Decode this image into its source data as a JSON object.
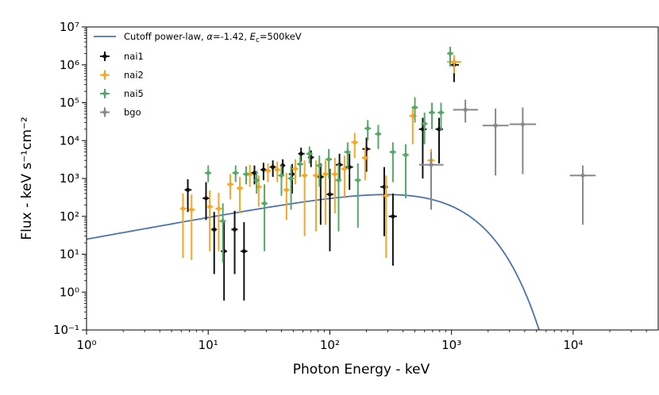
{
  "chart_data": {
    "type": "scatter",
    "title": "",
    "xlabel": "Photon Energy - keV",
    "ylabel": "Flux - keV s⁻¹cm⁻²",
    "xscale": "log",
    "yscale": "log",
    "xlim": [
      1,
      50000
    ],
    "ylim": [
      0.1,
      10000000
    ],
    "xticks": [
      {
        "value": 1,
        "label": "10⁰"
      },
      {
        "value": 10,
        "label": "10¹"
      },
      {
        "value": 100,
        "label": "10²"
      },
      {
        "value": 1000,
        "label": "10³"
      },
      {
        "value": 10000,
        "label": "10⁴"
      }
    ],
    "yticks": [
      {
        "value": 0.1,
        "label": "10⁻¹"
      },
      {
        "value": 1,
        "label": "10⁰"
      },
      {
        "value": 10,
        "label": "10¹"
      },
      {
        "value": 100,
        "label": "10²"
      },
      {
        "value": 1000,
        "label": "10³"
      },
      {
        "value": 10000,
        "label": "10⁴"
      },
      {
        "value": 100000,
        "label": "10⁵"
      },
      {
        "value": 1000000,
        "label": "10⁶"
      },
      {
        "value": 10000000,
        "label": "10⁷"
      }
    ],
    "legend_position": "top-left",
    "model": {
      "name": "Cutoff power-law",
      "label": "Cutoff power-law, α=-1.42, Ec=500keV",
      "alpha": -1.42,
      "ec_kev": 500,
      "norm_at_1kev": 25,
      "color": "#4c72b0"
    },
    "series": [
      {
        "name": "nai1",
        "color": "#111111",
        "points": [
          {
            "x": 6.8,
            "xlo": 6.4,
            "xhi": 7.3,
            "y": 500,
            "ylo": 130,
            "yhi": 950
          },
          {
            "x": 9.6,
            "xlo": 9.0,
            "xhi": 10.2,
            "y": 300,
            "ylo": 80,
            "yhi": 800
          },
          {
            "x": 11.2,
            "xlo": 10.6,
            "xhi": 11.8,
            "y": 45,
            "ylo": 3,
            "yhi": 130
          },
          {
            "x": 13.5,
            "xlo": 12.7,
            "xhi": 14.3,
            "y": 12,
            "ylo": 0.6,
            "yhi": 70
          },
          {
            "x": 16.5,
            "xlo": 15.5,
            "xhi": 17.5,
            "y": 45,
            "ylo": 3,
            "yhi": 140
          },
          {
            "x": 19.7,
            "xlo": 18.5,
            "xhi": 21.0,
            "y": 12,
            "ylo": 0.6,
            "yhi": 70
          },
          {
            "x": 24,
            "xlo": 22.5,
            "xhi": 25.5,
            "y": 1400,
            "ylo": 700,
            "yhi": 2200
          },
          {
            "x": 28.5,
            "xlo": 27,
            "xhi": 30,
            "y": 1700,
            "ylo": 900,
            "yhi": 2600
          },
          {
            "x": 34,
            "xlo": 32,
            "xhi": 36,
            "y": 2000,
            "ylo": 1100,
            "yhi": 3000
          },
          {
            "x": 41,
            "xlo": 39,
            "xhi": 43,
            "y": 2200,
            "ylo": 1200,
            "yhi": 3200
          },
          {
            "x": 49,
            "xlo": 46,
            "xhi": 52,
            "y": 1300,
            "ylo": 400,
            "yhi": 2400
          },
          {
            "x": 58,
            "xlo": 55,
            "xhi": 62,
            "y": 4500,
            "ylo": 2800,
            "yhi": 6500
          },
          {
            "x": 70,
            "xlo": 66,
            "xhi": 74,
            "y": 3600,
            "ylo": 2000,
            "yhi": 5500
          },
          {
            "x": 84,
            "xlo": 79,
            "xhi": 89,
            "y": 1100,
            "ylo": 60,
            "yhi": 2500
          },
          {
            "x": 100,
            "xlo": 94,
            "xhi": 107,
            "y": 380,
            "ylo": 12,
            "yhi": 1800
          },
          {
            "x": 120,
            "xlo": 112,
            "xhi": 128,
            "y": 2300,
            "ylo": 900,
            "yhi": 4500
          },
          {
            "x": 145,
            "xlo": 135,
            "xhi": 155,
            "y": 2000,
            "ylo": 500,
            "yhi": 4500
          },
          {
            "x": 200,
            "xlo": 185,
            "xhi": 215,
            "y": 6000,
            "ylo": 1500,
            "yhi": 12000
          },
          {
            "x": 280,
            "xlo": 260,
            "xhi": 300,
            "y": 600,
            "ylo": 30,
            "yhi": 2000
          },
          {
            "x": 330,
            "xlo": 305,
            "xhi": 355,
            "y": 100,
            "ylo": 5,
            "yhi": 400
          },
          {
            "x": 580,
            "xlo": 540,
            "xhi": 625,
            "y": 20000,
            "ylo": 1000,
            "yhi": 40000
          },
          {
            "x": 790,
            "xlo": 740,
            "xhi": 850,
            "y": 20000,
            "ylo": 2500,
            "yhi": 40000
          },
          {
            "x": 1050,
            "xlo": 970,
            "xhi": 1150,
            "y": 1000000,
            "ylo": 350000,
            "yhi": 1500000
          }
        ]
      },
      {
        "name": "nai2",
        "color": "#f5a623",
        "points": [
          {
            "x": 6.2,
            "xlo": 5.9,
            "xhi": 6.6,
            "y": 160,
            "ylo": 8,
            "yhi": 400
          },
          {
            "x": 7.3,
            "xlo": 6.9,
            "xhi": 7.8,
            "y": 150,
            "ylo": 7,
            "yhi": 380
          },
          {
            "x": 10.3,
            "xlo": 9.7,
            "xhi": 11.0,
            "y": 180,
            "ylo": 12,
            "yhi": 480
          },
          {
            "x": 12.2,
            "xlo": 11.5,
            "xhi": 13.0,
            "y": 160,
            "ylo": 12,
            "yhi": 420
          },
          {
            "x": 15.2,
            "xlo": 14.3,
            "xhi": 16.2,
            "y": 700,
            "ylo": 280,
            "yhi": 1300
          },
          {
            "x": 18.2,
            "xlo": 17.1,
            "xhi": 19.4,
            "y": 550,
            "ylo": 120,
            "yhi": 1100
          },
          {
            "x": 22,
            "xlo": 20.7,
            "xhi": 23.3,
            "y": 1300,
            "ylo": 600,
            "yhi": 2300
          },
          {
            "x": 26,
            "xlo": 24.5,
            "xhi": 27.6,
            "y": 600,
            "ylo": 180,
            "yhi": 1200
          },
          {
            "x": 31,
            "xlo": 29.2,
            "xhi": 32.8,
            "y": 1600,
            "ylo": 800,
            "yhi": 2500
          },
          {
            "x": 37,
            "xlo": 35,
            "xhi": 39,
            "y": 1700,
            "ylo": 800,
            "yhi": 2800
          },
          {
            "x": 44,
            "xlo": 41.5,
            "xhi": 46.5,
            "y": 500,
            "ylo": 80,
            "yhi": 1400
          },
          {
            "x": 52,
            "xlo": 49,
            "xhi": 55,
            "y": 1800,
            "ylo": 700,
            "yhi": 3200
          },
          {
            "x": 62,
            "xlo": 58.5,
            "xhi": 65.5,
            "y": 1200,
            "ylo": 30,
            "yhi": 3000
          },
          {
            "x": 77,
            "xlo": 72.5,
            "xhi": 81.5,
            "y": 1200,
            "ylo": 40,
            "yhi": 3000
          },
          {
            "x": 92,
            "xlo": 86.5,
            "xhi": 97.5,
            "y": 1300,
            "ylo": 60,
            "yhi": 3000
          },
          {
            "x": 110,
            "xlo": 103,
            "xhi": 117,
            "y": 1300,
            "ylo": 120,
            "yhi": 3500
          },
          {
            "x": 132,
            "xlo": 124,
            "xhi": 140,
            "y": 1800,
            "ylo": 300,
            "yhi": 4000
          },
          {
            "x": 160,
            "xlo": 150,
            "xhi": 170,
            "y": 9000,
            "ylo": 3500,
            "yhi": 16000
          },
          {
            "x": 195,
            "xlo": 183,
            "xhi": 207,
            "y": 3500,
            "ylo": 900,
            "yhi": 6500
          },
          {
            "x": 290,
            "xlo": 270,
            "xhi": 310,
            "y": 350,
            "ylo": 8,
            "yhi": 1200
          },
          {
            "x": 480,
            "xlo": 450,
            "xhi": 515,
            "y": 45000,
            "ylo": 8000,
            "yhi": 80000
          },
          {
            "x": 680,
            "xlo": 635,
            "xhi": 725,
            "y": 3000,
            "ylo": 150,
            "yhi": 6000
          },
          {
            "x": 1050,
            "xlo": 920,
            "xhi": 1200,
            "y": 1200000,
            "ylo": 600000,
            "yhi": 1800000
          }
        ]
      },
      {
        "name": "nai5",
        "color": "#55a868",
        "points": [
          {
            "x": 10.0,
            "xlo": 9.4,
            "xhi": 10.6,
            "y": 1400,
            "ylo": 800,
            "yhi": 2200
          },
          {
            "x": 13.2,
            "xlo": 12.4,
            "xhi": 14.0,
            "y": 75,
            "ylo": 6,
            "yhi": 220
          },
          {
            "x": 16.8,
            "xlo": 15.8,
            "xhi": 17.8,
            "y": 1400,
            "ylo": 800,
            "yhi": 2200
          },
          {
            "x": 20.5,
            "xlo": 19.3,
            "xhi": 21.7,
            "y": 1300,
            "ylo": 700,
            "yhi": 2100
          },
          {
            "x": 25,
            "xlo": 23.5,
            "xhi": 26.5,
            "y": 900,
            "ylo": 400,
            "yhi": 1600
          },
          {
            "x": 29,
            "xlo": 27.3,
            "xhi": 30.7,
            "y": 220,
            "ylo": 12,
            "yhi": 700
          },
          {
            "x": 40,
            "xlo": 37.6,
            "xhi": 42.4,
            "y": 1200,
            "ylo": 350,
            "yhi": 2200
          },
          {
            "x": 48,
            "xlo": 45.2,
            "xhi": 50.8,
            "y": 1000,
            "ylo": 150,
            "yhi": 2200
          },
          {
            "x": 57,
            "xlo": 53.6,
            "xhi": 60.4,
            "y": 2400,
            "ylo": 1100,
            "yhi": 4000
          },
          {
            "x": 68,
            "xlo": 64,
            "xhi": 72,
            "y": 4500,
            "ylo": 2500,
            "yhi": 7000
          },
          {
            "x": 82,
            "xlo": 77,
            "xhi": 87,
            "y": 2200,
            "ylo": 600,
            "yhi": 4000
          },
          {
            "x": 98,
            "xlo": 92,
            "xhi": 104,
            "y": 3200,
            "ylo": 1000,
            "yhi": 6000
          },
          {
            "x": 118,
            "xlo": 111,
            "xhi": 125,
            "y": 900,
            "ylo": 40,
            "yhi": 2400
          },
          {
            "x": 140,
            "xlo": 131,
            "xhi": 149,
            "y": 5000,
            "ylo": 1800,
            "yhi": 9000
          },
          {
            "x": 170,
            "xlo": 160,
            "xhi": 180,
            "y": 900,
            "ylo": 50,
            "yhi": 2500
          },
          {
            "x": 205,
            "xlo": 193,
            "xhi": 217,
            "y": 21000,
            "ylo": 10000,
            "yhi": 35000
          },
          {
            "x": 250,
            "xlo": 235,
            "xhi": 265,
            "y": 15000,
            "ylo": 6000,
            "yhi": 26000
          },
          {
            "x": 330,
            "xlo": 310,
            "xhi": 350,
            "y": 5000,
            "ylo": 800,
            "yhi": 9000
          },
          {
            "x": 420,
            "xlo": 395,
            "xhi": 445,
            "y": 4200,
            "ylo": 300,
            "yhi": 8000
          },
          {
            "x": 500,
            "xlo": 470,
            "xhi": 530,
            "y": 75000,
            "ylo": 30000,
            "yhi": 140000
          },
          {
            "x": 600,
            "xlo": 564,
            "xhi": 636,
            "y": 28000,
            "ylo": 8000,
            "yhi": 55000
          },
          {
            "x": 690,
            "xlo": 650,
            "xhi": 730,
            "y": 55000,
            "ylo": 20000,
            "yhi": 100000
          },
          {
            "x": 820,
            "xlo": 770,
            "xhi": 870,
            "y": 55000,
            "ylo": 18000,
            "yhi": 100000
          },
          {
            "x": 975,
            "xlo": 920,
            "xhi": 1035,
            "y": 2000000,
            "ylo": 900000,
            "yhi": 3000000
          }
        ]
      },
      {
        "name": "bgo",
        "color": "#888888",
        "points": [
          {
            "x": 680,
            "xlo": 540,
            "xhi": 860,
            "y": 2300,
            "ylo": 150,
            "yhi": 5000
          },
          {
            "x": 1300,
            "xlo": 1030,
            "xhi": 1650,
            "y": 65000,
            "ylo": 30000,
            "yhi": 120000
          },
          {
            "x": 2300,
            "xlo": 1800,
            "xhi": 2950,
            "y": 25000,
            "ylo": 1200,
            "yhi": 70000
          },
          {
            "x": 3850,
            "xlo": 3000,
            "xhi": 4950,
            "y": 27000,
            "ylo": 1300,
            "yhi": 75000
          },
          {
            "x": 12000,
            "xlo": 9400,
            "xhi": 15300,
            "y": 1200,
            "ylo": 60,
            "yhi": 2200
          }
        ]
      }
    ]
  }
}
